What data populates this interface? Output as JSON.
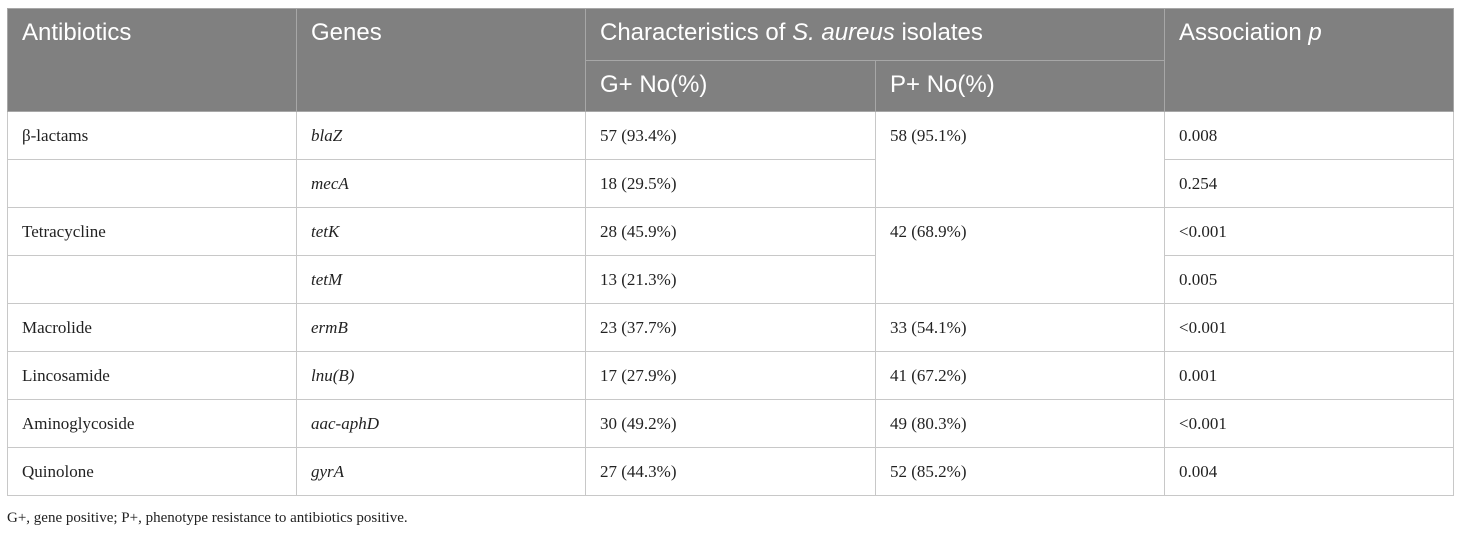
{
  "headers": {
    "antibiotics": "Antibiotics",
    "genes": "Genes",
    "characteristics_prefix": "Characteristics of ",
    "characteristics_species": "S. aureus",
    "characteristics_suffix": " isolates",
    "association": "Association ",
    "association_p": "p",
    "g_plus": "G+ No(%)",
    "p_plus": "P+ No(%)"
  },
  "rows": [
    {
      "antibiotic": "β-lactams",
      "gene": "blaZ",
      "g": "57 (93.4%)",
      "p": "58 (95.1%)",
      "assoc": "0.008"
    },
    {
      "antibiotic": "",
      "gene": "mecA",
      "g": "18 (29.5%)",
      "p": "",
      "assoc": "0.254"
    },
    {
      "antibiotic": "Tetracycline",
      "gene": "tetK",
      "g": "28 (45.9%)",
      "p": "42 (68.9%)",
      "assoc": "<0.001"
    },
    {
      "antibiotic": "",
      "gene": "tetM",
      "g": "13 (21.3%)",
      "p": "",
      "assoc": "0.005"
    },
    {
      "antibiotic": "Macrolide",
      "gene": "ermB",
      "g": "23 (37.7%)",
      "p": "33 (54.1%)",
      "assoc": "<0.001"
    },
    {
      "antibiotic": "Lincosamide",
      "gene": "lnu(B)",
      "g": "17 (27.9%)",
      "p": "41 (67.2%)",
      "assoc": "0.001"
    },
    {
      "antibiotic": "Aminoglycoside",
      "gene": "aac-aphD",
      "g": "30 (49.2%)",
      "p": "49 (80.3%)",
      "assoc": "<0.001"
    },
    {
      "antibiotic": "Quinolone",
      "gene": "gyrA",
      "g": "27 (44.3%)",
      "p": "52 (85.2%)",
      "assoc": "0.004"
    }
  ],
  "footnote": "G+, gene positive; P+, phenotype resistance to antibiotics positive.",
  "colors": {
    "header_bg": "#808080",
    "header_text": "#ffffff",
    "border": "#c8c8c8"
  }
}
